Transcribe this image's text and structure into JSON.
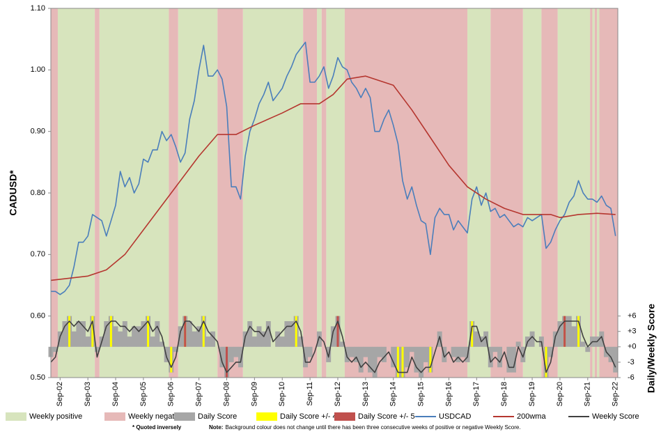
{
  "chart_data": {
    "type": "line",
    "y_label": "CADUSD*",
    "y2_label": "Daily/Weekly Score",
    "footnote": "* Quoted inversely",
    "note": {
      "label": "Note:",
      "text": "Background colour does not change until there has been three consecutive weeks of positive or negative Weekly Score."
    },
    "xlim": [
      "2002-05",
      "2022-10"
    ],
    "xticks": [
      {
        "value": "2002-09",
        "label": "Sep-02"
      },
      {
        "value": "2003-09",
        "label": "Sep-03"
      },
      {
        "value": "2004-09",
        "label": "Sep-04"
      },
      {
        "value": "2005-09",
        "label": "Sep-05"
      },
      {
        "value": "2006-09",
        "label": "Sep-06"
      },
      {
        "value": "2007-09",
        "label": "Sep-07"
      },
      {
        "value": "2008-09",
        "label": "Sep-08"
      },
      {
        "value": "2009-09",
        "label": "Sep-09"
      },
      {
        "value": "2010-09",
        "label": "Sep-10"
      },
      {
        "value": "2011-09",
        "label": "Sep-11"
      },
      {
        "value": "2012-09",
        "label": "Sep-12"
      },
      {
        "value": "2013-09",
        "label": "Sep-13"
      },
      {
        "value": "2014-09",
        "label": "Sep-14"
      },
      {
        "value": "2015-09",
        "label": "Sep-15"
      },
      {
        "value": "2016-09",
        "label": "Sep-16"
      },
      {
        "value": "2017-09",
        "label": "Sep-17"
      },
      {
        "value": "2018-09",
        "label": "Sep-18"
      },
      {
        "value": "2019-09",
        "label": "Sep-19"
      },
      {
        "value": "2020-09",
        "label": "Sep-20"
      },
      {
        "value": "2021-09",
        "label": "Sep-21"
      },
      {
        "value": "2022-09",
        "label": "Sep-22"
      }
    ],
    "ylim": [
      0.5,
      1.1
    ],
    "yticks": [
      {
        "value": 0.5,
        "label": "0.50"
      },
      {
        "value": 0.6,
        "label": "0.60"
      },
      {
        "value": 0.7,
        "label": "0.70"
      },
      {
        "value": 0.8,
        "label": "0.80"
      },
      {
        "value": 0.9,
        "label": "0.90"
      },
      {
        "value": 1.0,
        "label": "1.00"
      },
      {
        "value": 1.1,
        "label": "1.10"
      }
    ],
    "y2lim": [
      -6,
      66
    ],
    "y2ticks": [
      -6,
      -3,
      {
        "value": 0,
        "label": "+0"
      },
      {
        "value": 3,
        "label": "+3"
      },
      {
        "value": 6,
        "label": "+6"
      }
    ],
    "regions": [
      {
        "name": "Weekly positive",
        "color": "#d7e4bd",
        "periods": [
          [
            "2002-08",
            "2003-12"
          ],
          [
            "2004-02",
            "2006-08"
          ],
          [
            "2006-12",
            "2008-05"
          ],
          [
            "2009-04",
            "2011-06"
          ],
          [
            "2011-12",
            "2012-02"
          ],
          [
            "2012-04",
            "2012-12"
          ],
          [
            "2017-05",
            "2018-03"
          ],
          [
            "2019-05",
            "2020-01"
          ],
          [
            "2020-08",
            "2021-10"
          ],
          [
            "2021-11",
            "2021-12"
          ],
          [
            "2022-01",
            "2022-02"
          ]
        ]
      },
      {
        "name": "Weekly negative",
        "color": "#e6b9b8",
        "periods": [
          [
            "2002-05",
            "2002-08"
          ],
          [
            "2003-12",
            "2004-02"
          ],
          [
            "2006-08",
            "2006-12"
          ],
          [
            "2008-05",
            "2009-04"
          ],
          [
            "2011-06",
            "2011-12"
          ],
          [
            "2012-02",
            "2012-04"
          ],
          [
            "2012-12",
            "2017-05"
          ],
          [
            "2018-03",
            "2019-05"
          ],
          [
            "2020-01",
            "2020-08"
          ],
          [
            "2021-10",
            "2021-11"
          ],
          [
            "2021-12",
            "2022-01"
          ],
          [
            "2022-02",
            "2022-10"
          ]
        ]
      }
    ],
    "x": [
      "2002-05",
      "2002-07",
      "2002-09",
      "2002-11",
      "2003-01",
      "2003-03",
      "2003-05",
      "2003-07",
      "2003-09",
      "2003-11",
      "2004-01",
      "2004-03",
      "2004-05",
      "2004-07",
      "2004-09",
      "2004-11",
      "2005-01",
      "2005-03",
      "2005-05",
      "2005-07",
      "2005-09",
      "2005-11",
      "2006-01",
      "2006-03",
      "2006-05",
      "2006-07",
      "2006-09",
      "2006-11",
      "2007-01",
      "2007-03",
      "2007-05",
      "2007-07",
      "2007-09",
      "2007-11",
      "2008-01",
      "2008-03",
      "2008-05",
      "2008-07",
      "2008-09",
      "2008-11",
      "2009-01",
      "2009-03",
      "2009-05",
      "2009-07",
      "2009-09",
      "2009-11",
      "2010-01",
      "2010-03",
      "2010-05",
      "2010-07",
      "2010-09",
      "2010-11",
      "2011-01",
      "2011-03",
      "2011-05",
      "2011-07",
      "2011-09",
      "2011-11",
      "2012-01",
      "2012-03",
      "2012-05",
      "2012-07",
      "2012-09",
      "2012-11",
      "2013-01",
      "2013-03",
      "2013-05",
      "2013-07",
      "2013-09",
      "2013-11",
      "2014-01",
      "2014-03",
      "2014-05",
      "2014-07",
      "2014-09",
      "2014-11",
      "2015-01",
      "2015-03",
      "2015-05",
      "2015-07",
      "2015-09",
      "2015-11",
      "2016-01",
      "2016-03",
      "2016-05",
      "2016-07",
      "2016-09",
      "2016-11",
      "2017-01",
      "2017-03",
      "2017-05",
      "2017-07",
      "2017-09",
      "2017-11",
      "2018-01",
      "2018-03",
      "2018-05",
      "2018-07",
      "2018-09",
      "2018-11",
      "2019-01",
      "2019-03",
      "2019-05",
      "2019-07",
      "2019-09",
      "2019-11",
      "2020-01",
      "2020-03",
      "2020-05",
      "2020-07",
      "2020-09",
      "2020-11",
      "2021-01",
      "2021-03",
      "2021-05",
      "2021-07",
      "2021-09",
      "2021-11",
      "2022-01",
      "2022-03",
      "2022-05",
      "2022-07",
      "2022-09"
    ],
    "series": [
      {
        "name": "Daily Score",
        "type": "bar",
        "axis": "y2",
        "color": "#a6a6a6",
        "values": [
          -2,
          -1,
          3,
          5,
          6,
          3,
          5,
          5,
          2,
          6,
          -1,
          2,
          5,
          6,
          4,
          3,
          5,
          2,
          4,
          4,
          5,
          6,
          2,
          5,
          1,
          -3,
          -5,
          -1,
          4,
          6,
          5,
          3,
          4,
          6,
          2,
          3,
          0,
          -4,
          -6,
          -3,
          -2,
          -4,
          3,
          5,
          2,
          4,
          3,
          5,
          0,
          3,
          2,
          5,
          5,
          6,
          2,
          -4,
          -2,
          0,
          3,
          0,
          -3,
          4,
          6,
          1,
          -3,
          -2,
          -3,
          -5,
          -2,
          -5,
          -6,
          -2,
          -3,
          0,
          -4,
          -6,
          -6,
          -4,
          -1,
          -5,
          -6,
          -3,
          -5,
          0,
          3,
          -3,
          0,
          -2,
          -3,
          -2,
          -3,
          5,
          3,
          2,
          3,
          -4,
          -1,
          -4,
          0,
          -5,
          -5,
          1,
          -3,
          2,
          3,
          0,
          2,
          -6,
          -2,
          3,
          5,
          6,
          6,
          4,
          6,
          1,
          -1,
          2,
          2,
          3,
          -2,
          -3,
          -5
        ]
      },
      {
        "name": "Daily Score +/- 4",
        "type": "bar",
        "axis": "y2",
        "color": "#ffff00",
        "x": [
          "2003-01",
          "2003-11",
          "2004-07",
          "2005-11",
          "2006-09",
          "2007-03",
          "2007-11",
          "2008-09",
          "2011-03",
          "2012-09",
          "2014-11",
          "2015-01",
          "2016-01",
          "2017-07",
          "2020-03",
          "2020-11",
          "2021-05"
        ],
        "values": [
          6,
          6,
          6,
          6,
          -5,
          6,
          6,
          -6,
          6,
          6,
          -6,
          -6,
          -5,
          5,
          -6,
          6,
          6
        ]
      },
      {
        "name": "Daily Score +/- 5",
        "type": "bar",
        "axis": "y2",
        "color": "#c0504d",
        "x": [
          "2007-03",
          "2008-09",
          "2012-09",
          "2020-11"
        ],
        "values": [
          6,
          -6,
          6,
          6
        ]
      },
      {
        "name": "USDCAD",
        "type": "line",
        "color": "#4a7ebb",
        "values": [
          0.64,
          0.64,
          0.635,
          0.64,
          0.65,
          0.68,
          0.72,
          0.72,
          0.73,
          0.765,
          0.76,
          0.755,
          0.73,
          0.755,
          0.78,
          0.835,
          0.81,
          0.825,
          0.8,
          0.815,
          0.855,
          0.85,
          0.87,
          0.87,
          0.9,
          0.885,
          0.895,
          0.875,
          0.85,
          0.865,
          0.92,
          0.95,
          1.0,
          1.04,
          0.99,
          0.99,
          1.0,
          0.985,
          0.94,
          0.81,
          0.81,
          0.79,
          0.86,
          0.9,
          0.92,
          0.945,
          0.96,
          0.98,
          0.95,
          0.96,
          0.97,
          0.99,
          1.005,
          1.025,
          1.035,
          1.045,
          0.98,
          0.98,
          0.99,
          1.005,
          0.97,
          0.99,
          1.02,
          1.005,
          1.0,
          0.98,
          0.97,
          0.955,
          0.97,
          0.955,
          0.9,
          0.9,
          0.92,
          0.935,
          0.91,
          0.88,
          0.82,
          0.79,
          0.81,
          0.78,
          0.755,
          0.75,
          0.7,
          0.76,
          0.775,
          0.765,
          0.765,
          0.74,
          0.755,
          0.745,
          0.735,
          0.79,
          0.81,
          0.78,
          0.8,
          0.77,
          0.775,
          0.76,
          0.765,
          0.755,
          0.745,
          0.75,
          0.745,
          0.76,
          0.755,
          0.76,
          0.765,
          0.71,
          0.72,
          0.74,
          0.755,
          0.765,
          0.785,
          0.795,
          0.82,
          0.8,
          0.79,
          0.79,
          0.785,
          0.795,
          0.78,
          0.775,
          0.73
        ]
      },
      {
        "name": "200wma",
        "type": "line",
        "color": "#b5362f",
        "x": [
          "2002-05",
          "2003-09",
          "2004-05",
          "2005-01",
          "2005-09",
          "2006-09",
          "2007-09",
          "2008-05",
          "2009-01",
          "2009-09",
          "2010-09",
          "2011-05",
          "2012-01",
          "2012-07",
          "2013-01",
          "2013-09",
          "2014-09",
          "2015-05",
          "2016-01",
          "2016-09",
          "2017-05",
          "2018-01",
          "2018-09",
          "2019-05",
          "2020-05",
          "2020-09",
          "2021-05",
          "2022-01",
          "2022-09"
        ],
        "values": [
          0.658,
          0.665,
          0.675,
          0.7,
          0.74,
          0.8,
          0.86,
          0.895,
          0.895,
          0.91,
          0.93,
          0.945,
          0.945,
          0.96,
          0.985,
          0.99,
          0.975,
          0.935,
          0.89,
          0.845,
          0.81,
          0.79,
          0.775,
          0.765,
          0.765,
          0.76,
          0.765,
          0.767,
          0.765
        ]
      },
      {
        "name": "Weekly Score",
        "type": "line",
        "axis": "y2",
        "color": "#404040",
        "values": [
          -3,
          -2,
          2,
          4,
          5,
          4,
          5,
          4,
          3,
          5,
          -2,
          1,
          4,
          5,
          5,
          4,
          4,
          3,
          4,
          3,
          4,
          5,
          3,
          4,
          2,
          -2,
          -4,
          -2,
          3,
          5,
          5,
          4,
          3,
          5,
          3,
          2,
          1,
          -3,
          -5,
          -4,
          -3,
          -3,
          2,
          4,
          3,
          3,
          2,
          4,
          1,
          2,
          3,
          4,
          4,
          5,
          3,
          -3,
          -3,
          -1,
          2,
          1,
          -2,
          3,
          5,
          2,
          -2,
          -3,
          -2,
          -4,
          -3,
          -4,
          -5,
          -3,
          -2,
          -1,
          -3,
          -5,
          -5,
          -5,
          -2,
          -4,
          -5,
          -4,
          -4,
          -1,
          2,
          -2,
          -1,
          -3,
          -2,
          -3,
          -2,
          4,
          4,
          1,
          2,
          -3,
          -2,
          -3,
          -1,
          -4,
          -4,
          0,
          -2,
          1,
          2,
          1,
          1,
          -5,
          -3,
          2,
          4,
          5,
          5,
          5,
          5,
          2,
          0,
          1,
          1,
          2,
          -1,
          -2,
          -4
        ]
      }
    ]
  }
}
